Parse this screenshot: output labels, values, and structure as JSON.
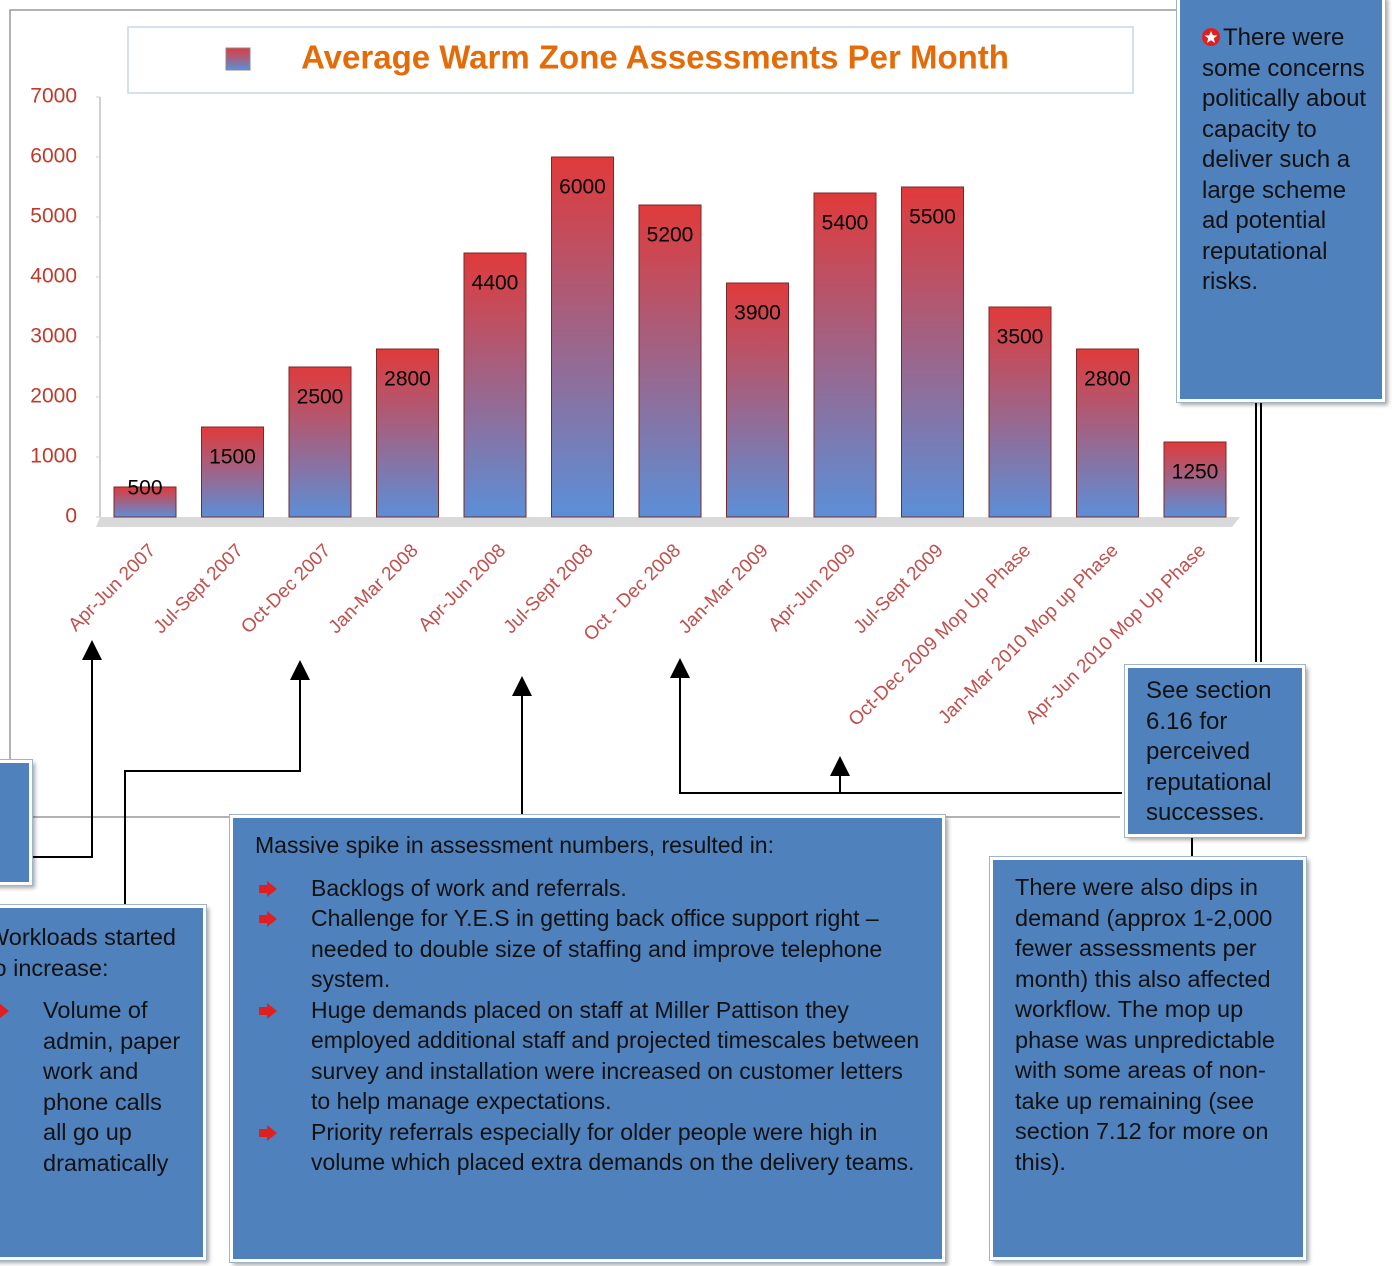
{
  "chart_data": {
    "type": "bar",
    "title": "Average Warm Zone Assessments Per Month",
    "categories": [
      "Apr-Jun 2007",
      "Jul-Sept 2007",
      "Oct-Dec 2007",
      "Jan-Mar 2008",
      "Apr-Jun 2008",
      "Jul-Sept 2008",
      "Oct - Dec 2008",
      "Jan-Mar 2009",
      "Apr-Jun 2009",
      "Jul-Sept 2009",
      "Oct-Dec 2009 Mop Up Phase",
      "Jan-Mar 2010 Mop up Phase",
      "Apr-Jun 2010 Mop Up Phase"
    ],
    "values": [
      500,
      1500,
      2500,
      2800,
      4400,
      6000,
      5200,
      3900,
      5400,
      5500,
      3500,
      2800,
      1250
    ],
    "color_top": "#e03a3a",
    "color_bottom": "#5b8fd8",
    "ylim": [
      0,
      7000
    ],
    "yticks": [
      0,
      1000,
      2000,
      3000,
      4000,
      5000,
      6000,
      7000
    ],
    "annotations": [
      {
        "text": "There were some concerns politically about capacity to deliver such a large scheme ad potential reputational risks."
      },
      {
        "text": "See section 6.16 for perceived reputational successes."
      },
      {
        "text": "Massive spike in assessment numbers, resulted in:",
        "bullets": [
          "Backlogs of work and referrals.",
          "Challenge for Y.E.S in getting back office support right – needed to double size of staffing and improve telephone system.",
          "Huge demands placed on staff at Miller Pattison they employed additional staff and projected timescales between survey and installation were increased on customer letters to help manage expectations.",
          "Priority referrals especially for older people were high in volume which placed extra demands on the delivery teams."
        ]
      },
      {
        "text": "There were also dips in demand (approx 1-2,000 fewer assessments per month) this also affected workflow. The mop up phase was unpredictable with some areas of non-take up remaining (see section 7.12 for more on this)."
      },
      {
        "text": "Workloads started to increase:",
        "bullets": [
          "Volume of admin, paper work and phone calls all go up dramatically"
        ]
      }
    ]
  }
}
